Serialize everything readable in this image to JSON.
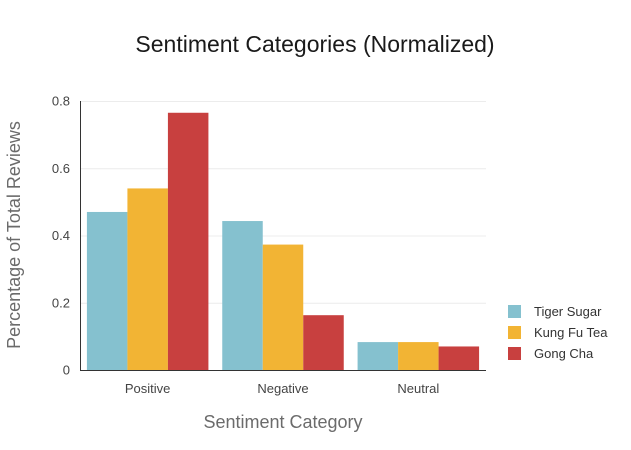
{
  "chart_data": {
    "type": "bar",
    "title": "Sentiment Categories (Normalized)",
    "xlabel": "Sentiment Category",
    "ylabel": "Percentage of Total Reviews",
    "categories": [
      "Positive",
      "Negative",
      "Neutral"
    ],
    "series": [
      {
        "name": "Tiger Sugar",
        "color": "#85c1cf",
        "values": [
          0.47,
          0.443,
          0.083
        ]
      },
      {
        "name": "Kung Fu Tea",
        "color": "#f2b434",
        "values": [
          0.54,
          0.373,
          0.083
        ]
      },
      {
        "name": "Gong Cha",
        "color": "#c8403f",
        "values": [
          0.765,
          0.163,
          0.07
        ]
      }
    ],
    "ylim": [
      0,
      0.8
    ],
    "yticks": [
      "0",
      "0.2",
      "0.4",
      "0.6",
      "0.8"
    ],
    "ytick_values": [
      0,
      0.2,
      0.4,
      0.6,
      0.8
    ],
    "grid": true,
    "legend_position": "right-bottom"
  }
}
